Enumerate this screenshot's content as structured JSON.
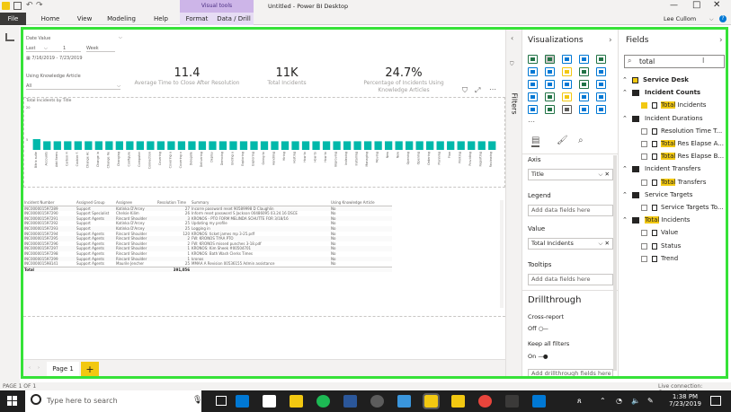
{
  "window": {
    "title": "Untitled - Power BI Desktop",
    "visual_tools": "Visual tools",
    "user": "Lee Cullom"
  },
  "ribbon": {
    "tabs": [
      "File",
      "Home",
      "View",
      "Modeling",
      "Help",
      "Format",
      "Data / Drill"
    ]
  },
  "slicers": {
    "date_label": "Date Value",
    "relative": {
      "mode": "Last",
      "count": "1",
      "unit": "Week"
    },
    "date_range": "7/16/2019 - 7/23/2019",
    "knowledge_label": "Using Knowledge Article",
    "knowledge_value": "All"
  },
  "kpis": [
    {
      "value": "11.4",
      "label": "Average Time to Close After Resolution"
    },
    {
      "value": "11K",
      "label": "Total Incidents"
    },
    {
      "value": "24.7%",
      "label": "Percentage of Incidents Using Knowledge Articles"
    }
  ],
  "chart_data": {
    "type": "bar",
    "title": "Total Incidents by Title",
    "ylabel": "",
    "xlabel": "",
    "ylim": [
      0,
      20
    ],
    "categories": [
      "Bitrix suite",
      "Accounts",
      "Add Items",
      "Carbon Fi",
      "Cashier F.",
      "Change Ac",
      "Change in",
      "Change Re",
      "Changing",
      "Configure",
      "Computer",
      "Connection",
      "Covering",
      "Covering a",
      "Covering o",
      "Delegate",
      "Delivering",
      "Deploy",
      "Demoing",
      "Ending a",
      "Exploring",
      "Exploring",
      "Going to",
      "Handling",
      "Hiring",
      "Hosting",
      "How to",
      "How to",
      "How to",
      "Improving",
      "Indexing",
      "Installing",
      "Managing",
      "Moving",
      "New",
      "New",
      "Opening",
      "Opening",
      "Ordering",
      "Planning",
      "Plan",
      "Printing",
      "Providing",
      "Reporting",
      "Reviewing"
    ],
    "values": [
      5,
      4,
      4,
      4,
      4,
      4,
      4,
      4,
      4,
      4,
      4,
      4,
      4,
      4,
      4,
      4,
      4,
      4,
      4,
      4,
      4,
      4,
      4,
      4,
      4,
      4,
      4,
      4,
      4,
      4,
      4,
      4,
      4,
      4,
      4,
      4,
      4,
      4,
      4,
      4,
      4,
      4,
      4,
      4,
      4
    ],
    "y_tick_labels": [
      "20",
      "5"
    ],
    "bar_color": "#01b8aa"
  },
  "table": {
    "columns": [
      "Incident Number",
      "Assigned Group",
      "Assignee",
      "Resolution Time",
      "Summary",
      "Using Knowledge Article"
    ],
    "rows": [
      [
        "INC000001597289",
        "Support",
        "Katinka D'Arcey",
        "27",
        "Incorre password reset 90589998 D Claughlin",
        "No"
      ],
      [
        "INC000001597290",
        "Support Specialist",
        "Chelsie Kilim",
        "26",
        "Inform reset password S Jackson 00486095 03.24.16 DSCE",
        "No"
      ],
      [
        "INC000001597291",
        "Support Agents",
        "Rincard Shoulder",
        "3",
        "KRONOS - PTO FORM MELINDA SCHUTTE FOR 3/18/16",
        "No"
      ],
      [
        "INC000001597292",
        "Support",
        "Katinka D'Arcey",
        "25",
        "Updating my profile",
        "No"
      ],
      [
        "INC000001597293",
        "Support",
        "Katinka D'Arcey",
        "25",
        "Logging in",
        "No"
      ],
      [
        "INC000001597294",
        "Support Agents",
        "Rincard Shoulder",
        "120",
        "KRONOS: ticket james mp 3-25.pdf",
        "No"
      ],
      [
        "INC000001597295",
        "Support Agents",
        "Rincard Shoulder",
        "2",
        "FW: KRONOS TYAA PTO",
        "No"
      ],
      [
        "INC000001597296",
        "Support Agents",
        "Rincard Shoulder",
        "2",
        "FW: KRONOS missed punches 3-18.pdf",
        "No"
      ],
      [
        "INC000001597297",
        "Support Agents",
        "Rincard Shoulder",
        "1",
        "KRONOS: Kim Sheek #00504701",
        "No"
      ],
      [
        "INC000001597298",
        "Support Agents",
        "Rincard Shoulder",
        "1",
        "KRONOS: Bath Wash Clerks Times",
        "No"
      ],
      [
        "INC000001597299",
        "Support Agents",
        "Rincard Shoulder",
        "1",
        "kronos",
        "No"
      ],
      [
        "INC000001598141",
        "Support Agents",
        "Maurile Jencher",
        "25",
        "MMAA A Revision 00536155 Admin assistance",
        "No"
      ]
    ],
    "total_label": "Total",
    "total_value": "391,056"
  },
  "pages": {
    "current": "Page 1",
    "add": "+"
  },
  "filters_label": "Filters",
  "visualizations": {
    "title": "Visualizations",
    "axis": {
      "label": "Axis",
      "value": "Title"
    },
    "legend": {
      "label": "Legend",
      "placeholder": "Add data fields here"
    },
    "value": {
      "label": "Value",
      "value": "Total Incidents"
    },
    "tooltips": {
      "label": "Tooltips",
      "placeholder": "Add data fields here"
    },
    "drillthrough": {
      "title": "Drillthrough",
      "cross_report": "Cross-report",
      "cross_state": "Off",
      "keep_filters": "Keep all filters",
      "keep_state": "On",
      "placeholder": "Add drillthrough fields here"
    }
  },
  "fields": {
    "title": "Fields",
    "search": "total",
    "tree": [
      {
        "label": "Service Desk",
        "level": 0
      },
      {
        "label": "Incident Counts",
        "level": 1
      },
      {
        "label": "Total Incidents",
        "level": 2,
        "checked": true
      },
      {
        "label": "Incident Durations",
        "level": 1
      },
      {
        "label": "Resolution Time T...",
        "level": 2
      },
      {
        "label": "Total Res Elapse A...",
        "level": 2
      },
      {
        "label": "Total Res Elapse B...",
        "level": 2
      },
      {
        "label": "Incident Transfers",
        "level": 1
      },
      {
        "label": "Total Transfers",
        "level": 2
      },
      {
        "label": "Service Targets",
        "level": 1
      },
      {
        "label": "Service Targets To...",
        "level": 2
      },
      {
        "label": "Total Incidents",
        "level": 1
      },
      {
        "label": "Value",
        "level": 2
      },
      {
        "label": "Status",
        "level": 2
      },
      {
        "label": "Trend",
        "level": 2
      }
    ]
  },
  "status": {
    "page": "PAGE 1 OF 1",
    "connection": "Live connection: Connected"
  },
  "taskbar": {
    "search": "Type here to search",
    "time": "1:38 PM",
    "date": "7/23/2019"
  }
}
